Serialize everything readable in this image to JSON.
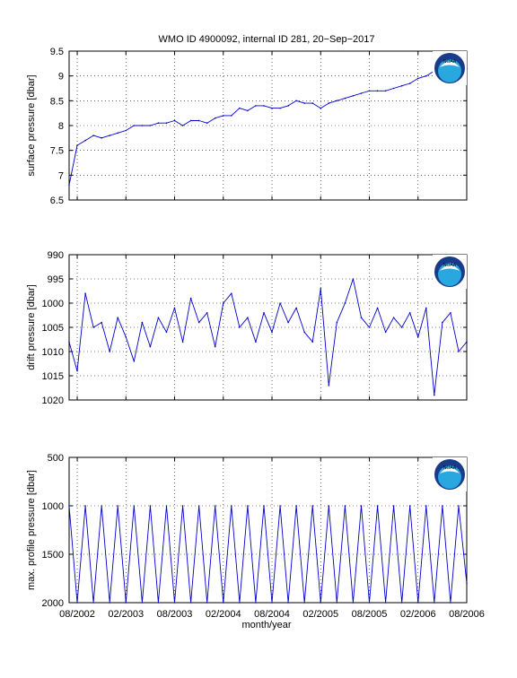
{
  "figure": {
    "title": "WMO ID 4900092, internal ID 281, 20−Sep−2017",
    "xlabel": "month/year",
    "x_tick_labels": [
      "08/2002",
      "02/2003",
      "08/2003",
      "02/2004",
      "08/2004",
      "02/2005",
      "08/2005",
      "02/2006",
      "08/2006"
    ],
    "logo_text": "NOAA",
    "logo_colors": {
      "outer": "#1a3a8a",
      "inner": "#29a8e0",
      "bird": "#ffffff"
    },
    "line_color": "#0000cc"
  },
  "chart_data": [
    {
      "type": "line",
      "ylabel": "surface pressure [dbar]",
      "xlim": [
        "2002-07",
        "2006-08"
      ],
      "ylim": [
        6.5,
        9.5
      ],
      "y_reversed": false,
      "y_ticks": [
        6.5,
        7,
        7.5,
        8,
        8.5,
        9,
        9.5
      ],
      "y_tick_labels": [
        "6.5",
        "7",
        "7.5",
        "8",
        "8.5",
        "9",
        "9.5"
      ],
      "grid": true,
      "series": [
        {
          "x": [
            "2002-07",
            "2002-08",
            "2002-09",
            "2002-10",
            "2002-11",
            "2002-12",
            "2003-01",
            "2003-02",
            "2003-03",
            "2003-04",
            "2003-05",
            "2003-06",
            "2003-07",
            "2003-08",
            "2003-09",
            "2003-10",
            "2003-11",
            "2003-12",
            "2004-01",
            "2004-02",
            "2004-03",
            "2004-04",
            "2004-05",
            "2004-06",
            "2004-07",
            "2004-08",
            "2004-09",
            "2004-10",
            "2004-11",
            "2004-12",
            "2005-01",
            "2005-02",
            "2005-03",
            "2005-04",
            "2005-05",
            "2005-06",
            "2005-07",
            "2005-08",
            "2005-09",
            "2005-10",
            "2005-11",
            "2005-12",
            "2006-01",
            "2006-02",
            "2006-03",
            "2006-04",
            "2006-05",
            "2006-06",
            "2006-07",
            "2006-08"
          ],
          "y": [
            6.8,
            7.6,
            7.7,
            7.8,
            7.75,
            7.8,
            7.85,
            7.9,
            8.0,
            8.0,
            8.0,
            8.05,
            8.05,
            8.1,
            8.0,
            8.1,
            8.1,
            8.05,
            8.15,
            8.2,
            8.2,
            8.35,
            8.3,
            8.4,
            8.4,
            8.35,
            8.35,
            8.4,
            8.5,
            8.45,
            8.45,
            8.35,
            8.45,
            8.5,
            8.55,
            8.6,
            8.65,
            8.7,
            8.7,
            8.7,
            8.75,
            8.8,
            8.85,
            8.95,
            9.0,
            9.1,
            9.15,
            9.2,
            9.2,
            9.15
          ]
        }
      ]
    },
    {
      "type": "line",
      "ylabel": "drift pressure [dbar]",
      "xlim": [
        "2002-07",
        "2006-08"
      ],
      "ylim": [
        990,
        1020
      ],
      "y_reversed": true,
      "y_ticks": [
        990,
        995,
        1000,
        1005,
        1010,
        1015,
        1020
      ],
      "y_tick_labels": [
        "990",
        "995",
        "1000",
        "1005",
        "1010",
        "1015",
        "1020"
      ],
      "grid": true,
      "series": [
        {
          "x": [
            "2002-07",
            "2002-08",
            "2002-09",
            "2002-10",
            "2002-11",
            "2002-12",
            "2003-01",
            "2003-02",
            "2003-03",
            "2003-04",
            "2003-05",
            "2003-06",
            "2003-07",
            "2003-08",
            "2003-09",
            "2003-10",
            "2003-11",
            "2003-12",
            "2004-01",
            "2004-02",
            "2004-03",
            "2004-04",
            "2004-05",
            "2004-06",
            "2004-07",
            "2004-08",
            "2004-09",
            "2004-10",
            "2004-11",
            "2004-12",
            "2005-01",
            "2005-02",
            "2005-03",
            "2005-04",
            "2005-05",
            "2005-06",
            "2005-07",
            "2005-08",
            "2005-09",
            "2005-10",
            "2005-11",
            "2005-12",
            "2006-01",
            "2006-02",
            "2006-03",
            "2006-04",
            "2006-05",
            "2006-06",
            "2006-07",
            "2006-08"
          ],
          "y": [
            1008,
            1014,
            998,
            1005,
            1004,
            1010,
            1003,
            1007,
            1012,
            1004,
            1009,
            1003,
            1006,
            1001,
            1008,
            999,
            1004,
            1002,
            1009,
            1000,
            998,
            1005,
            1003,
            1008,
            1002,
            1006,
            1000,
            1004,
            1001,
            1006,
            1008,
            997,
            1017,
            1004,
            1000,
            995,
            1003,
            1005,
            1001,
            1006,
            1003,
            1005,
            1002,
            1007,
            1001,
            1019,
            1004,
            1002,
            1010,
            1008
          ]
        }
      ]
    },
    {
      "type": "line",
      "ylabel": "max. profile pressure [dbar]",
      "xlim": [
        "2002-07",
        "2006-08"
      ],
      "ylim": [
        500,
        2000
      ],
      "y_reversed": true,
      "y_ticks": [
        500,
        1000,
        1500,
        2000
      ],
      "y_tick_labels": [
        "500",
        "1000",
        "1500",
        "2000"
      ],
      "grid": true,
      "series": [
        {
          "x": [
            "2002-07",
            "2002-08",
            "2002-09",
            "2002-10",
            "2002-11",
            "2002-12",
            "2003-01",
            "2003-02",
            "2003-03",
            "2003-04",
            "2003-05",
            "2003-06",
            "2003-07",
            "2003-08",
            "2003-09",
            "2003-10",
            "2003-11",
            "2003-12",
            "2004-01",
            "2004-02",
            "2004-03",
            "2004-04",
            "2004-05",
            "2004-06",
            "2004-07",
            "2004-08",
            "2004-09",
            "2004-10",
            "2004-11",
            "2004-12",
            "2005-01",
            "2005-02",
            "2005-03",
            "2005-04",
            "2005-05",
            "2005-06",
            "2005-07",
            "2005-08",
            "2005-09",
            "2005-10",
            "2005-11",
            "2005-12",
            "2006-01",
            "2006-02",
            "2006-03",
            "2006-04",
            "2006-05",
            "2006-06",
            "2006-07",
            "2006-08"
          ],
          "y": [
            1000,
            2000,
            1000,
            2000,
            1000,
            2000,
            1000,
            2000,
            1000,
            2000,
            1000,
            2000,
            1000,
            2000,
            1000,
            2000,
            1000,
            2000,
            1000,
            2000,
            1000,
            2000,
            1000,
            2000,
            1000,
            2000,
            1000,
            2000,
            1000,
            2000,
            1000,
            2000,
            1000,
            2000,
            1000,
            2000,
            1000,
            2000,
            1000,
            2000,
            1000,
            2000,
            1000,
            2000,
            1000,
            2000,
            1000,
            2000,
            1000,
            1800
          ]
        }
      ]
    }
  ]
}
